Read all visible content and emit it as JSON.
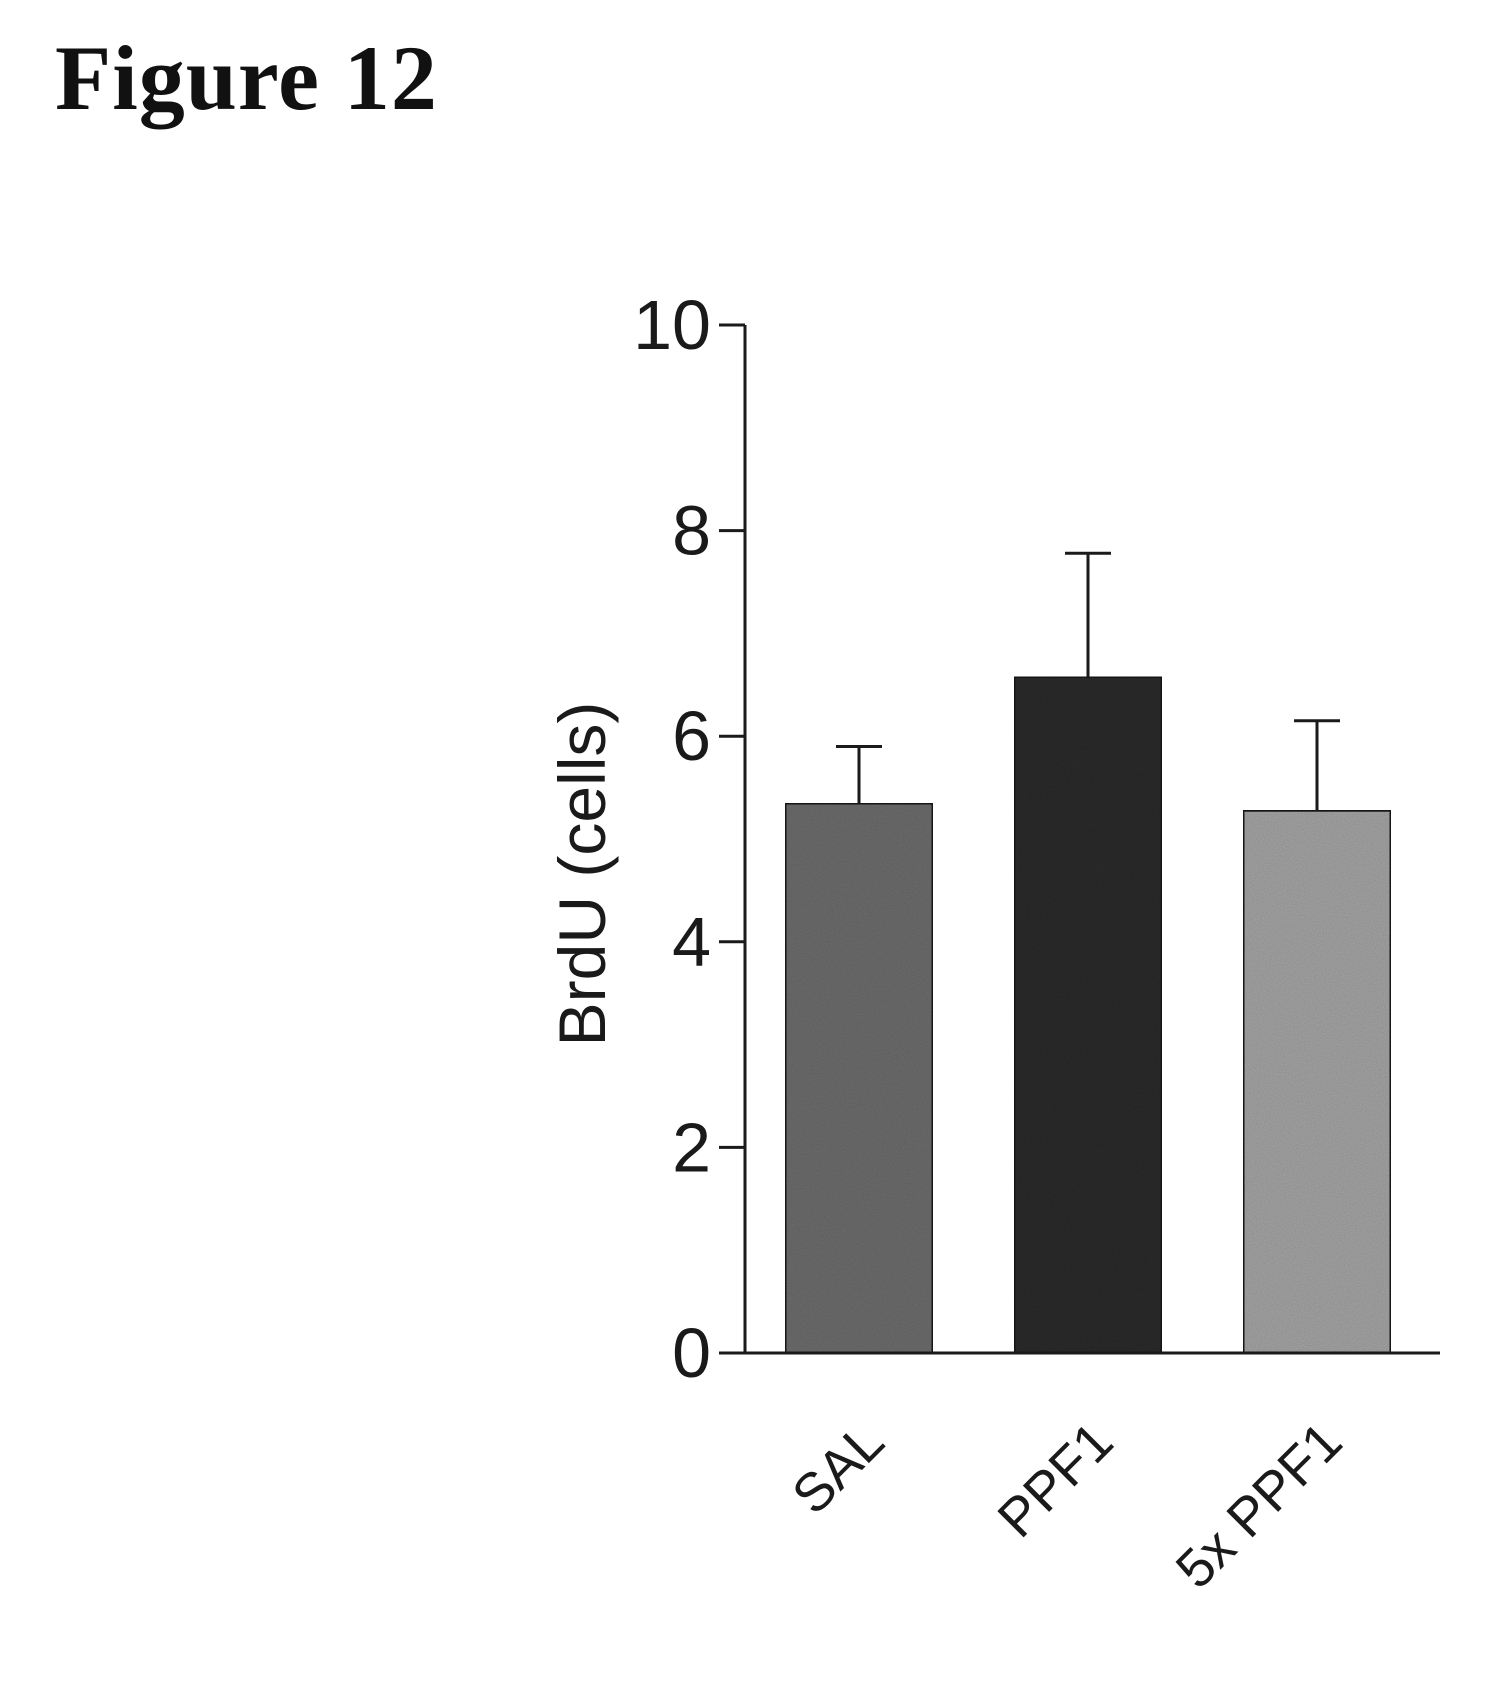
{
  "figure_label": "Figure 12",
  "chart_data": {
    "type": "bar",
    "categories": [
      "SAL",
      "PPF1",
      "5x PPF1"
    ],
    "values": [
      5.35,
      6.58,
      5.28
    ],
    "error_bars": [
      0.55,
      1.2,
      0.87
    ],
    "ylabel": "BrdU (cells)",
    "xlabel": "",
    "ylim": [
      0,
      10
    ],
    "yticks": [
      0,
      2,
      4,
      6,
      8,
      10
    ],
    "grid": false,
    "legend": "none",
    "bar_colors": [
      "#6e6e6e",
      "#2e2e2e",
      "#a6a6a6"
    ],
    "axis_color": "#1a1a1a"
  }
}
